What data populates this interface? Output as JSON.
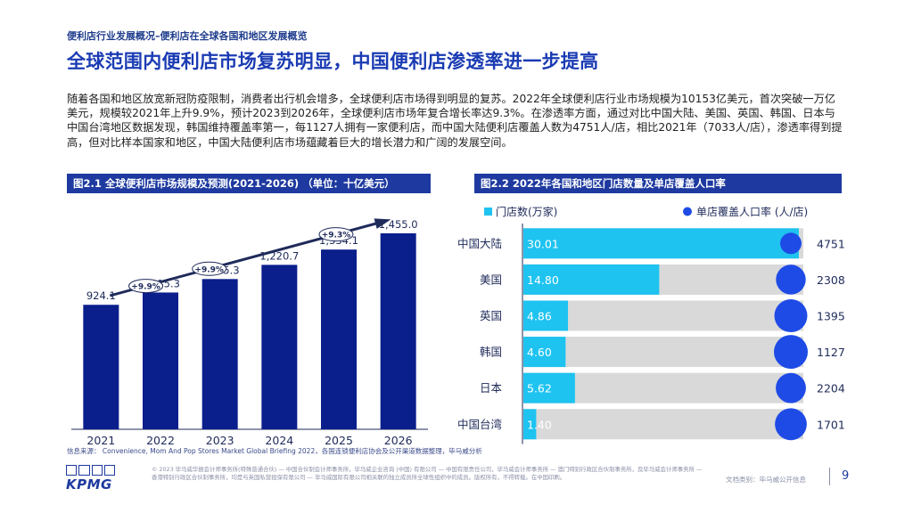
{
  "page": {
    "breadcrumb": "便利店行业发展概况–便利店在全球各国和地区发展概览",
    "title": "全球范围内便利店市场复苏明显，中国便利店渗透率进一步提高",
    "paragraph": "随着各国和地区放宽新冠防疫限制，消费者出行机会增多，全球便利店市场得到明显的复苏。2022年全球便利店行业市场规模为10153亿美元，首次突破一万亿美元，规模较2021年上升9.9%，预计2023到2026年，全球便利店市场年复合增长率达9.3%。在渗透率方面，通过对比中国大陆、美国、英国、韩国、日本与中国台湾地区数据发现，韩国维持覆盖率第一，每1127人拥有一家便利店，而中国大陆便利店覆盖人数为4751人/店，相比2021年（7033人/店），渗透率得到提高，但对比样本国家和地区，中国大陆便利店市场蕴藏着巨大的增长潜力和广阔的发展空间。",
    "source": "信息来源： Convenience, Mom And Pop Stores Market Global Briefing 2022，各国连锁便利店协会及公开渠道数据整理，毕马威分析",
    "footer": "© 2023 毕马威华振会计师事务所(特殊普通合伙) — 中国合伙制会计师事务所，毕马威企业咨询 (中国) 有限公司 — 中国有限责任公司，毕马威会计师事务所 — 澳门特别行政区合伙制事务所，及毕马威会计师事务所 — 香港特别行政区合伙制事务所，均是与英国私营担保有限公司 — 毕马威国际有限公司相关联的独立成员所全球性组织中的成员。版权所有，不得转载。在中国印刷。",
    "doc_class": "文档类别：毕马威公开信息",
    "page_number": "9",
    "logo": "KPMG"
  },
  "colors": {
    "navy": "#1e3aa0",
    "bar_dark": "#0a1e8c",
    "cyan": "#1ec3f0",
    "gray_bar": "#d9d9d9",
    "dot": "#1e4be6"
  },
  "chart_data": [
    {
      "type": "bar",
      "title": "图2.1 全球便利店市场规模及预测(2021-2026) （单位：十亿美元）",
      "categories": [
        "2021",
        "2022",
        "2023",
        "2024",
        "2025",
        "2026"
      ],
      "values": [
        924.1,
        1015.3,
        1115.3,
        1220.7,
        1334.1,
        1455.0
      ],
      "value_labels": [
        "924.1",
        "1,015.3",
        "1,115.3",
        "1,220.7",
        "1,334.1",
        "1,455.0"
      ],
      "ylim": [
        0,
        1600
      ],
      "annotations": [
        "+9.9%",
        "+9.9%",
        "+9.3%"
      ],
      "grid": false
    },
    {
      "type": "bar",
      "orientation": "horizontal",
      "title": "图2.2 2022年各国和地区门店数量及单店覆盖人口率",
      "categories": [
        "中国大陆",
        "美国",
        "英国",
        "韩国",
        "日本",
        "中国台湾"
      ],
      "series": [
        {
          "name": "门店数(万家)",
          "values": [
            30.01,
            14.8,
            4.86,
            4.6,
            5.62,
            1.4
          ],
          "labels": [
            "30.01",
            "14.80",
            "4.86",
            "4.60",
            "5.62",
            "1.40"
          ]
        },
        {
          "name": "单店覆盖人口率 (人/店)",
          "values": [
            4751,
            2308,
            1395,
            1127,
            2204,
            1701
          ],
          "labels": [
            "4751",
            "2308",
            "1395",
            "1127",
            "2204",
            "1701"
          ]
        }
      ],
      "xlim": [
        0,
        30.5
      ],
      "legend": "top"
    }
  ]
}
